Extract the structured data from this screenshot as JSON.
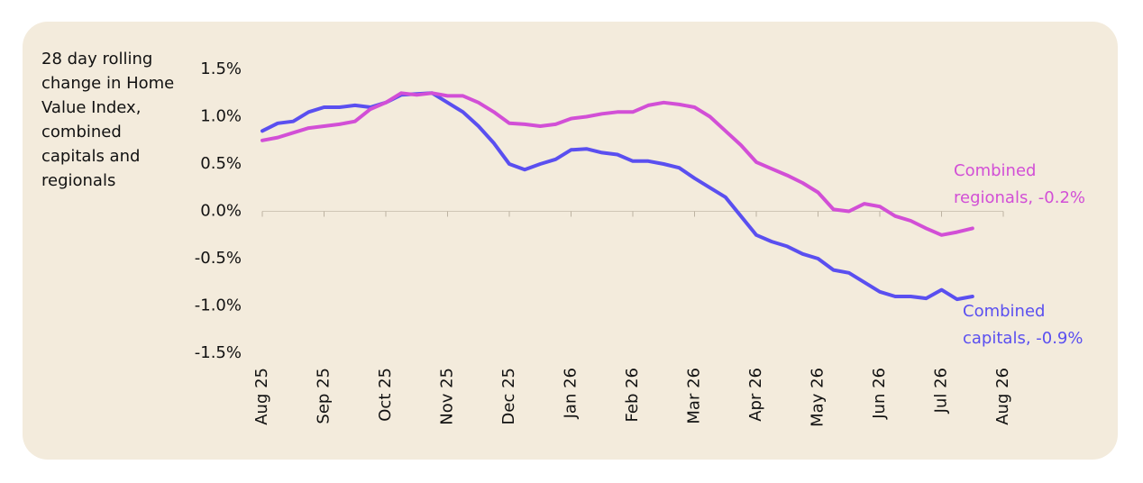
{
  "chart_data": {
    "type": "line",
    "ylabel": [
      "28 day rolling",
      "change in Home",
      "Value Index,",
      "combined",
      "capitals and",
      "regionals"
    ],
    "categories": [
      "Aug 25",
      null,
      null,
      null,
      "Sep 25",
      null,
      null,
      null,
      "Oct 25",
      null,
      null,
      null,
      "Nov 25",
      null,
      null,
      null,
      "Dec 25",
      null,
      null,
      null,
      "Jan 26",
      null,
      null,
      null,
      "Feb 26",
      null,
      null,
      null,
      "Mar 26",
      null,
      null,
      null,
      "Apr 26",
      null,
      null,
      null,
      "May 26",
      null,
      null,
      null,
      "Jun 26",
      null,
      null,
      null,
      "Jul 26",
      null,
      null,
      null,
      "Aug 26"
    ],
    "series": [
      {
        "name": "Combined capitals",
        "color": "#5a4ff0",
        "values": [
          0.85,
          0.93,
          0.95,
          1.05,
          1.1,
          1.1,
          1.12,
          1.1,
          1.15,
          1.23,
          1.24,
          1.25,
          1.15,
          1.05,
          0.9,
          0.72,
          0.5,
          0.44,
          0.5,
          0.55,
          0.65,
          0.66,
          0.62,
          0.6,
          0.53,
          0.53,
          0.5,
          0.46,
          0.35,
          0.25,
          0.15,
          -0.05,
          -0.25,
          -0.32,
          -0.37,
          -0.45,
          -0.5,
          -0.62,
          -0.65,
          -0.75,
          -0.85,
          -0.9,
          -0.9,
          -0.92,
          -0.83,
          -0.93,
          -0.9,
          null,
          null
        ]
      },
      {
        "name": "Combined regionals",
        "color": "#d24fd6",
        "values": [
          0.75,
          0.78,
          0.83,
          0.88,
          0.9,
          0.92,
          0.95,
          1.08,
          1.15,
          1.25,
          1.23,
          1.25,
          1.22,
          1.22,
          1.15,
          1.05,
          0.93,
          0.92,
          0.9,
          0.92,
          0.98,
          1.0,
          1.03,
          1.05,
          1.05,
          1.12,
          1.15,
          1.13,
          1.1,
          1.0,
          0.85,
          0.7,
          0.52,
          0.45,
          0.38,
          0.3,
          0.2,
          0.02,
          0.0,
          0.08,
          0.05,
          -0.05,
          -0.1,
          -0.18,
          -0.25,
          -0.22,
          -0.18,
          null,
          null
        ]
      }
    ],
    "annotations": [
      {
        "lines": [
          "Combined",
          "regionals, -0.2%"
        ],
        "color": "#d24fd6"
      },
      {
        "lines": [
          "Combined",
          "capitals, -0.9%"
        ],
        "color": "#5a4ff0"
      }
    ],
    "ylim": [
      -1.5,
      1.5
    ],
    "yticks": [
      {
        "value": -1.5,
        "label": "-1.5%"
      },
      {
        "value": -1.0,
        "label": "-1.0%"
      },
      {
        "value": -0.5,
        "label": "-0.5%"
      },
      {
        "value": 0,
        "label": "0.0%"
      },
      {
        "value": 0.5,
        "label": "0.5%"
      },
      {
        "value": 1.0,
        "label": "1.0%"
      },
      {
        "value": 1.5,
        "label": "1.5%"
      }
    ],
    "grid": false
  }
}
